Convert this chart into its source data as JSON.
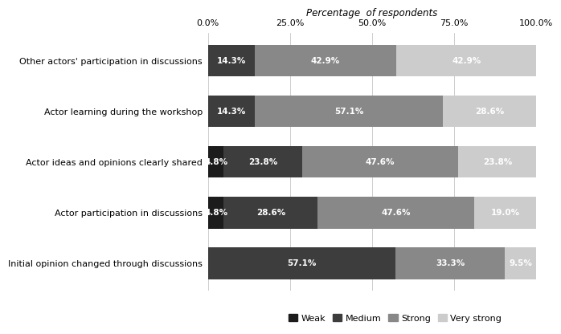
{
  "categories": [
    "Other actors' participation in discussions",
    "Actor learning during the workshop",
    "Actor ideas and opinions clearly shared",
    "Actor participation in discussions",
    "Initial opinion changed through discussions"
  ],
  "segments": {
    "Weak": [
      0.0,
      0.0,
      4.8,
      4.8,
      0.0
    ],
    "Medium": [
      14.3,
      14.3,
      23.8,
      28.6,
      57.1
    ],
    "Strong": [
      42.9,
      57.1,
      47.6,
      47.6,
      33.3
    ],
    "Very strong": [
      42.9,
      28.6,
      23.8,
      19.0,
      9.5
    ]
  },
  "segment_labels": {
    "Weak": [
      "",
      "",
      "4.8%",
      "4.8%",
      ""
    ],
    "Medium": [
      "14.3%",
      "14.3%",
      "23.8%",
      "28.6%",
      "57.1%"
    ],
    "Strong": [
      "42.9%",
      "57.1%",
      "47.6%",
      "47.6%",
      "33.3%"
    ],
    "Very strong": [
      "42.9%",
      "28.6%",
      "23.8%",
      "19.0%",
      "9.5%"
    ]
  },
  "colors": {
    "Weak": "#1c1c1c",
    "Medium": "#3d3d3d",
    "Strong": "#888888",
    "Very strong": "#cccccc"
  },
  "legend_order": [
    "Weak",
    "Medium",
    "Strong",
    "Very strong"
  ],
  "xlabel": "Percentage  of respondents",
  "xlim": [
    0,
    100
  ],
  "xticks": [
    0,
    25,
    50,
    75,
    100
  ],
  "xticklabels": [
    "0.0%",
    "25.0%",
    "50.0%",
    "75.0%",
    "100.0%"
  ],
  "bar_height": 0.62,
  "label_fontsize": 7.5,
  "tick_fontsize": 8,
  "title_fontsize": 8.5,
  "legend_fontsize": 8,
  "ytick_fontsize": 8
}
